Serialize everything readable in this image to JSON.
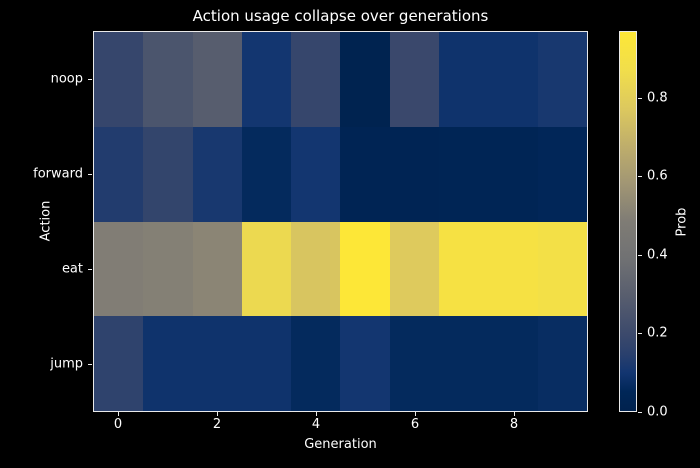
{
  "figure": {
    "background": "#000000",
    "text_color": "#ffffff",
    "spine_color": "#e9e9e9"
  },
  "chart_data": {
    "type": "heatmap",
    "title": "Action usage collapse over generations",
    "xlabel": "Generation",
    "ylabel": "Action",
    "categories_y": [
      "noop",
      "forward",
      "eat",
      "jump"
    ],
    "x": [
      0,
      1,
      2,
      3,
      4,
      5,
      6,
      7,
      8,
      9
    ],
    "x_tick_values": [
      0,
      2,
      4,
      6,
      8
    ],
    "x_tick_labels": [
      "0",
      "2",
      "4",
      "6",
      "8"
    ],
    "series": [
      {
        "name": "noop",
        "values": [
          0.18,
          0.25,
          0.29,
          0.1,
          0.18,
          0.01,
          0.19,
          0.09,
          0.09,
          0.11
        ]
      },
      {
        "name": "forward",
        "values": [
          0.13,
          0.17,
          0.11,
          0.06,
          0.1,
          0.03,
          0.03,
          0.04,
          0.04,
          0.05
        ]
      },
      {
        "name": "eat",
        "values": [
          0.49,
          0.5,
          0.52,
          0.85,
          0.76,
          0.97,
          0.78,
          0.91,
          0.91,
          0.89
        ]
      },
      {
        "name": "jump",
        "values": [
          0.16,
          0.09,
          0.09,
          0.09,
          0.06,
          0.1,
          0.06,
          0.06,
          0.06,
          0.07
        ]
      }
    ],
    "colormap": "cividis",
    "colormap_stops": [
      [
        0.0,
        "#00224e"
      ],
      [
        0.05,
        "#002657"
      ],
      [
        0.1,
        "#123570"
      ],
      [
        0.15,
        "#2a406d"
      ],
      [
        0.2,
        "#3b496c"
      ],
      [
        0.3,
        "#575d6e"
      ],
      [
        0.4,
        "#707173"
      ],
      [
        0.5,
        "#7f7c75"
      ],
      [
        0.6,
        "#a19674"
      ],
      [
        0.7,
        "#bfae6b"
      ],
      [
        0.8,
        "#ddc95e"
      ],
      [
        0.9,
        "#f1de4b"
      ],
      [
        1.0,
        "#fde737"
      ]
    ],
    "colorbar": {
      "label": "Prob",
      "vmin": 0.0,
      "vmax": 0.97,
      "tick_values": [
        0.0,
        0.2,
        0.4,
        0.6,
        0.8
      ],
      "tick_labels": [
        "0.0",
        "0.2",
        "0.4",
        "0.6",
        "0.8"
      ]
    },
    "legend": "none",
    "grid": false
  }
}
